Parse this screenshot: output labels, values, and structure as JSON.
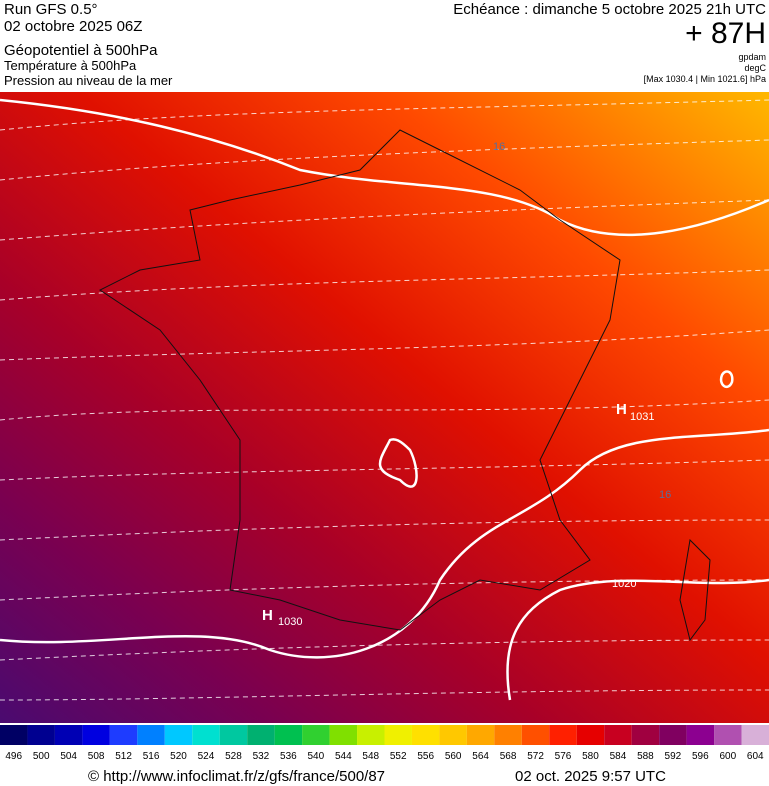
{
  "header": {
    "run": "Run GFS 0.5°",
    "date": "02 octobre 2025 06Z",
    "field_1": "Géopotentiel à 500hPa",
    "field_2": "Température à 500hPa",
    "field_3": "Pression au niveau de la mer",
    "valid": "Echéance : dimanche 5 octobre 2025 21h UTC",
    "lead": "+ 87H",
    "unit_1": "gpdam",
    "unit_2": "degC",
    "pressure_range": "[Max 1030.4 | Min 1021.6] hPa"
  },
  "map_labels": {
    "isotherm_1": "16",
    "isotherm_2": "16",
    "high_1": "H",
    "high_1_value": "1031",
    "high_2": "H",
    "high_2_value": "1030",
    "isobar_1": "1020"
  },
  "colorbar": {
    "values": [
      496,
      500,
      504,
      508,
      512,
      516,
      520,
      524,
      528,
      532,
      536,
      540,
      544,
      548,
      552,
      556,
      560,
      564,
      568,
      572,
      576,
      580,
      584,
      588,
      592,
      596,
      600,
      604
    ],
    "colors": [
      "#000064",
      "#000090",
      "#0000b4",
      "#0000e0",
      "#1e3cff",
      "#0080ff",
      "#00c8ff",
      "#00e0d0",
      "#00c8a0",
      "#00b070",
      "#00c050",
      "#30d030",
      "#80e000",
      "#c8f000",
      "#f0f000",
      "#ffe000",
      "#ffc800",
      "#ffa800",
      "#ff8000",
      "#ff5000",
      "#ff2000",
      "#e60000",
      "#c80020",
      "#a00040",
      "#800060",
      "#8c0090",
      "#b050b0",
      "#d8b0d8"
    ]
  },
  "footer": {
    "source": "© http://www.infoclimat.fr/z/gfs/france/500/87",
    "issued": "02 oct. 2025  9:57 UTC"
  }
}
